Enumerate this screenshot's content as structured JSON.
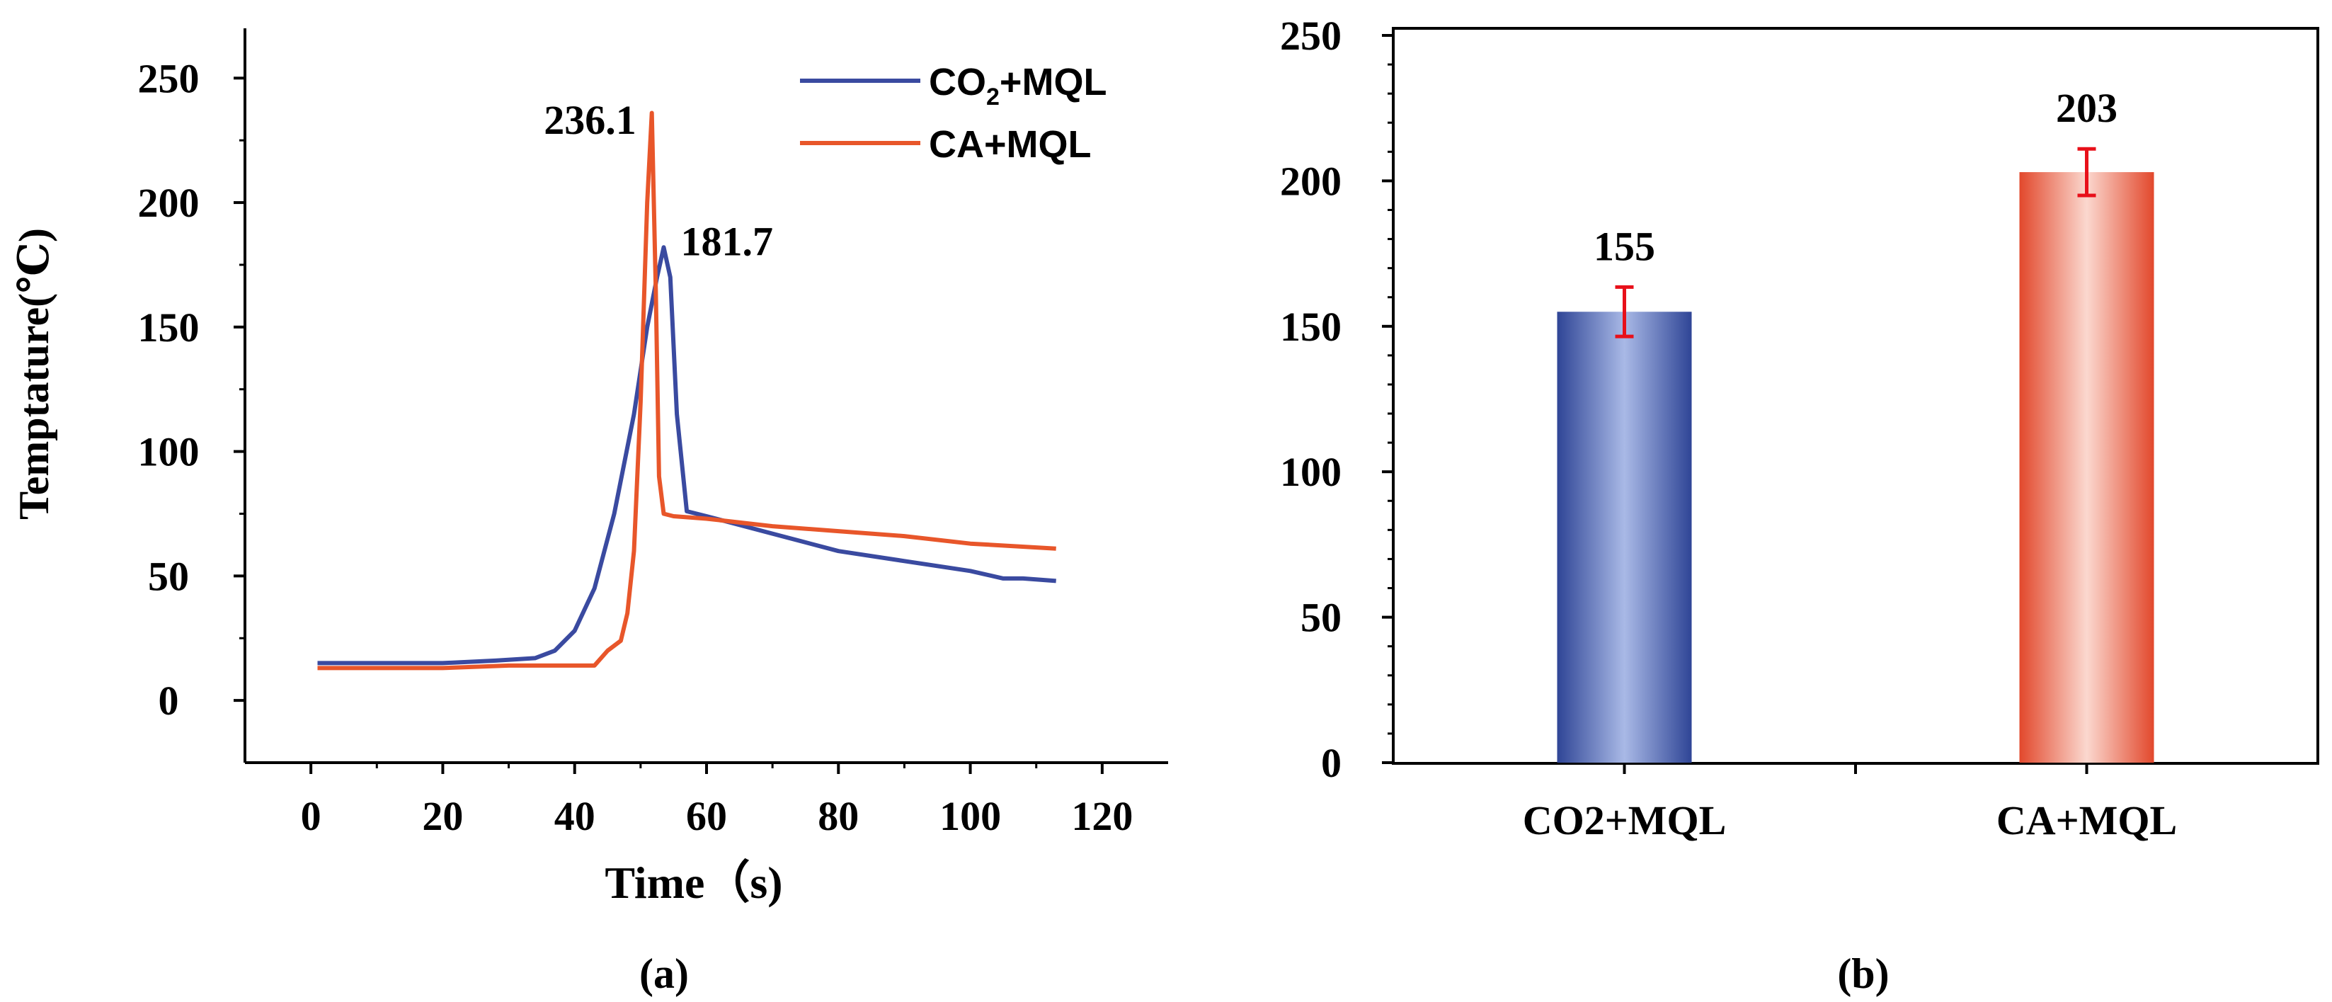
{
  "chart_data": [
    {
      "type": "line",
      "panel_label": "(a)",
      "xlabel": "Time（s)",
      "ylabel": "Temptature(℃)",
      "xlim": [
        -10,
        130
      ],
      "ylim": [
        -25,
        270
      ],
      "xticks": [
        0,
        20,
        40,
        60,
        80,
        100,
        120
      ],
      "yticks": [
        0,
        50,
        100,
        150,
        200,
        250
      ],
      "legend": {
        "placement": "top-right"
      },
      "series": [
        {
          "name": "CO2+MQL",
          "legend_main": "CO",
          "legend_sub": "2",
          "legend_tail": "+MQL",
          "color": "#3a4aa0",
          "x": [
            1,
            10,
            20,
            28,
            34,
            37,
            40,
            43,
            46,
            49,
            51,
            52.5,
            53.5,
            54.5,
            55.5,
            57,
            60,
            70,
            80,
            90,
            100,
            105,
            108,
            113
          ],
          "y": [
            15,
            15,
            15,
            16,
            17,
            20,
            28,
            45,
            75,
            115,
            150,
            170,
            182,
            170,
            115,
            76,
            74,
            67,
            60,
            56,
            52,
            49,
            49,
            48
          ]
        },
        {
          "name": "CA+MQL",
          "legend_main": "CA+MQL",
          "color": "#e8562a",
          "x": [
            1,
            10,
            20,
            30,
            40,
            43,
            45,
            47,
            48,
            49,
            50,
            51,
            51.7,
            52.3,
            52.8,
            53.5,
            55,
            60,
            70,
            80,
            90,
            100,
            113
          ],
          "y": [
            13,
            13,
            13,
            14,
            14,
            14,
            20,
            24,
            35,
            60,
            120,
            200,
            236,
            165,
            90,
            75,
            74,
            73,
            70,
            68,
            66,
            63,
            61
          ]
        }
      ],
      "annotations": [
        {
          "text": "236.1",
          "x": 51.7,
          "y": 236.1
        },
        {
          "text": "181.7",
          "x": 53.5,
          "y": 181.7
        }
      ]
    },
    {
      "type": "bar",
      "panel_label": "(b)",
      "categories": [
        "CO2+MQL",
        "CA+MQL"
      ],
      "values": [
        155,
        203
      ],
      "errors": [
        8.5,
        8
      ],
      "data_labels": [
        "155",
        "203"
      ],
      "colors": [
        "#3a4aa0",
        "#e8503a"
      ],
      "error_bar_color": "#e8101a",
      "ylim": [
        0,
        250
      ],
      "yticks": [
        0,
        50,
        100,
        150,
        200,
        250
      ]
    }
  ]
}
